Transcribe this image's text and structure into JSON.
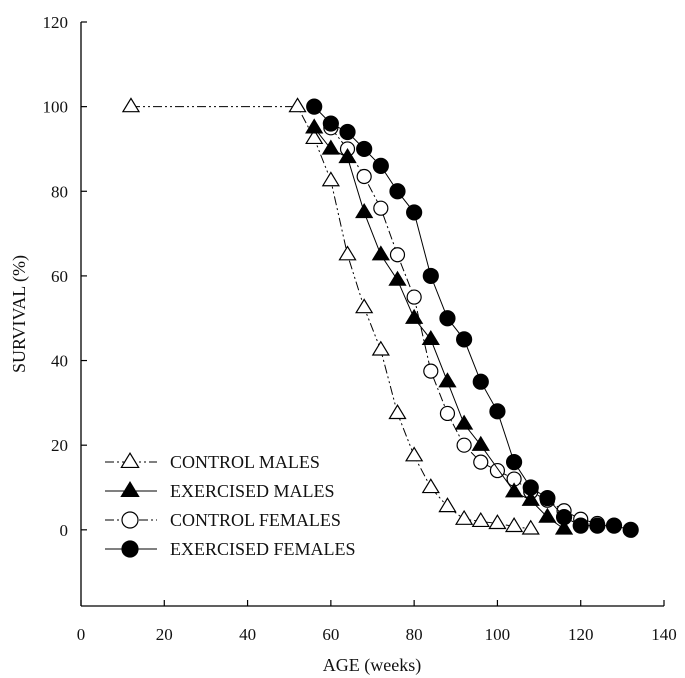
{
  "chart_data": {
    "type": "line",
    "title": "",
    "xlabel": "AGE (weeks)",
    "ylabel": "SURVIVAL (%)",
    "xlim": [
      0,
      140
    ],
    "ylim": [
      -18,
      120
    ],
    "x_ticks": [
      0,
      20,
      40,
      60,
      80,
      100,
      120,
      140
    ],
    "y_ticks": [
      0,
      20,
      40,
      60,
      80,
      100,
      120
    ],
    "grid": false,
    "legend_placement": "bottom-left",
    "series": [
      {
        "name": "CONTROL MALES",
        "marker": "triangle",
        "filled": false,
        "line_style": "dash-dot-dot",
        "color": "#000000",
        "points": [
          [
            12,
            100
          ],
          [
            52,
            100
          ],
          [
            56,
            92.5
          ],
          [
            60,
            82.5
          ],
          [
            64,
            65
          ],
          [
            68,
            52.5
          ],
          [
            72,
            42.5
          ],
          [
            76,
            27.5
          ],
          [
            80,
            17.5
          ],
          [
            84,
            10
          ],
          [
            88,
            5.5
          ],
          [
            92,
            2.5
          ],
          [
            96,
            2
          ],
          [
            100,
            1.5
          ],
          [
            104,
            0.8
          ],
          [
            108,
            0.2
          ]
        ]
      },
      {
        "name": "EXERCISED MALES",
        "marker": "triangle",
        "filled": true,
        "line_style": "solid",
        "color": "#000000",
        "points": [
          [
            56,
            95
          ],
          [
            60,
            90
          ],
          [
            64,
            88
          ],
          [
            68,
            75
          ],
          [
            72,
            65
          ],
          [
            76,
            59
          ],
          [
            80,
            50
          ],
          [
            84,
            45
          ],
          [
            88,
            35
          ],
          [
            92,
            25
          ],
          [
            96,
            20
          ],
          [
            104,
            9
          ],
          [
            108,
            7
          ],
          [
            112,
            3
          ],
          [
            116,
            0.2
          ]
        ]
      },
      {
        "name": "CONTROL FEMALES",
        "marker": "circle",
        "filled": false,
        "line_style": "dash-dot",
        "color": "#000000",
        "points": [
          [
            60,
            95
          ],
          [
            64,
            90
          ],
          [
            68,
            83.5
          ],
          [
            72,
            76
          ],
          [
            76,
            65
          ],
          [
            80,
            55
          ],
          [
            84,
            37.5
          ],
          [
            88,
            27.5
          ],
          [
            92,
            20
          ],
          [
            96,
            16
          ],
          [
            100,
            14
          ],
          [
            104,
            12
          ],
          [
            108,
            9
          ],
          [
            112,
            7
          ],
          [
            116,
            4.5
          ],
          [
            120,
            2.5
          ],
          [
            124,
            1.5
          ]
        ]
      },
      {
        "name": "EXERCISED FEMALES",
        "marker": "circle",
        "filled": true,
        "line_style": "solid",
        "color": "#000000",
        "points": [
          [
            56,
            100
          ],
          [
            60,
            96
          ],
          [
            64,
            94
          ],
          [
            68,
            90
          ],
          [
            72,
            86
          ],
          [
            76,
            80
          ],
          [
            80,
            75
          ],
          [
            84,
            60
          ],
          [
            88,
            50
          ],
          [
            92,
            45
          ],
          [
            96,
            35
          ],
          [
            100,
            28
          ],
          [
            104,
            16
          ],
          [
            108,
            10
          ],
          [
            112,
            7.5
          ],
          [
            116,
            3
          ],
          [
            120,
            1
          ],
          [
            124,
            1
          ],
          [
            128,
            1
          ],
          [
            132,
            0
          ]
        ]
      }
    ]
  }
}
